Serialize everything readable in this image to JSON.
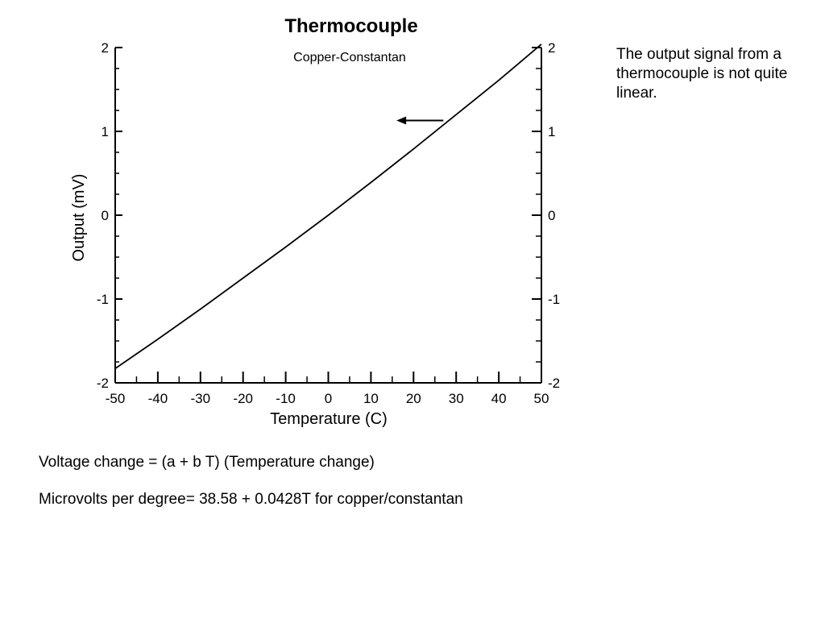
{
  "note": "The output signal from a thermocouple is not quite linear.",
  "equations": {
    "line1": "Voltage change = (a + b T) (Temperature change)",
    "line2": "Microvolts per degree= 38.58 + 0.0428T for copper/constantan"
  },
  "chart_data": {
    "type": "line",
    "title": "Thermocouple",
    "subtitle": "Copper-Constantan",
    "xlabel": "Temperature (C)",
    "ylabel": "Output (mV)",
    "xlim": [
      -50,
      50
    ],
    "ylim": [
      -2,
      2
    ],
    "x_ticks": [
      "-50",
      "-40",
      "-30",
      "-20",
      "-10",
      "0",
      "10",
      "20",
      "30",
      "40",
      "50"
    ],
    "y_ticks": [
      "-2",
      "-1",
      "0",
      "1",
      "2"
    ],
    "y_ticks_right": [
      "-2",
      "-1",
      "0",
      "1",
      "2"
    ],
    "grid": false,
    "series": [
      {
        "x": [
          -50,
          -40,
          -30,
          -20,
          -10,
          0,
          10,
          20,
          30,
          40,
          50
        ],
        "values": [
          -1.83,
          -1.48,
          -1.12,
          -0.75,
          -0.38,
          0.0,
          0.39,
          0.79,
          1.2,
          1.61,
          2.04
        ]
      }
    ],
    "annotations": [
      {
        "type": "arrow",
        "x_from": 27,
        "x_to": 16,
        "y": 1.13
      }
    ]
  }
}
